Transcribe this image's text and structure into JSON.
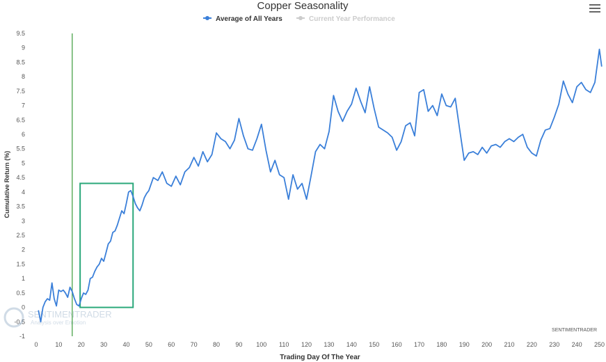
{
  "chart_data": {
    "type": "line",
    "title": "Copper Seasonality",
    "xlabel": "Trading Day Of The Year",
    "ylabel": "Cumulative Return (%)",
    "xlim": [
      0,
      252
    ],
    "ylim": [
      -1,
      9.5
    ],
    "xticks": [
      0,
      10,
      20,
      30,
      40,
      50,
      60,
      70,
      80,
      90,
      100,
      110,
      120,
      130,
      140,
      150,
      160,
      170,
      180,
      190,
      200,
      210,
      220,
      230,
      240,
      250
    ],
    "yticks": [
      -1,
      -0.5,
      0,
      0.5,
      1,
      1.5,
      2,
      2.5,
      3,
      3.5,
      4,
      4.5,
      5,
      5.5,
      6,
      6.5,
      7,
      7.5,
      8,
      8.5,
      9,
      9.5
    ],
    "legend_position": "top-center",
    "series": [
      {
        "name": "Average of All Years",
        "color": "#3a7fd9",
        "visible": true,
        "x": [
          1,
          2,
          3,
          4,
          5,
          6,
          7,
          8,
          9,
          10,
          11,
          12,
          13,
          14,
          15,
          16,
          17,
          18,
          19,
          20,
          21,
          22,
          23,
          24,
          25,
          26,
          27,
          28,
          29,
          30,
          31,
          32,
          33,
          34,
          35,
          36,
          37,
          38,
          39,
          40,
          41,
          42,
          43,
          44,
          45,
          46,
          47,
          48,
          49,
          50,
          52,
          54,
          56,
          58,
          60,
          62,
          64,
          66,
          68,
          70,
          72,
          74,
          76,
          78,
          80,
          82,
          84,
          86,
          88,
          90,
          92,
          94,
          96,
          98,
          100,
          102,
          104,
          106,
          108,
          110,
          112,
          114,
          116,
          118,
          120,
          122,
          124,
          126,
          128,
          130,
          132,
          134,
          136,
          138,
          140,
          142,
          144,
          146,
          148,
          150,
          152,
          154,
          156,
          158,
          160,
          162,
          164,
          166,
          168,
          170,
          172,
          174,
          176,
          178,
          180,
          182,
          184,
          186,
          188,
          190,
          192,
          194,
          196,
          198,
          200,
          202,
          204,
          206,
          208,
          210,
          212,
          214,
          216,
          218,
          220,
          222,
          224,
          226,
          228,
          230,
          232,
          234,
          236,
          238,
          240,
          242,
          244,
          246,
          248,
          250,
          251
        ],
        "values": [
          -0.1,
          -0.5,
          0.0,
          0.2,
          0.3,
          0.25,
          0.85,
          0.3,
          0.05,
          0.6,
          0.55,
          0.6,
          0.5,
          0.35,
          0.7,
          0.55,
          0.3,
          0.1,
          0.05,
          0.3,
          0.5,
          0.45,
          0.6,
          1.0,
          1.05,
          1.25,
          1.4,
          1.5,
          1.7,
          1.6,
          1.9,
          2.2,
          2.3,
          2.6,
          2.65,
          2.85,
          3.1,
          3.35,
          3.25,
          3.6,
          4.0,
          4.05,
          3.85,
          3.6,
          3.45,
          3.35,
          3.55,
          3.8,
          3.95,
          4.05,
          4.5,
          4.4,
          4.7,
          4.3,
          4.2,
          4.55,
          4.25,
          4.7,
          4.85,
          5.2,
          4.9,
          5.4,
          5.05,
          5.3,
          6.05,
          5.85,
          5.75,
          5.5,
          5.8,
          6.55,
          5.95,
          5.5,
          5.45,
          5.85,
          6.35,
          5.45,
          4.7,
          5.1,
          4.6,
          4.5,
          3.75,
          4.6,
          4.1,
          4.3,
          3.75,
          4.55,
          5.4,
          5.65,
          5.5,
          6.1,
          7.35,
          6.8,
          6.45,
          6.8,
          7.05,
          7.6,
          7.15,
          6.75,
          7.65,
          6.9,
          6.25,
          6.15,
          6.05,
          5.9,
          5.45,
          5.75,
          6.3,
          6.4,
          5.95,
          7.45,
          7.55,
          6.8,
          7.0,
          6.65,
          7.4,
          7.0,
          6.95,
          7.25,
          6.15,
          5.1,
          5.35,
          5.4,
          5.3,
          5.55,
          5.35,
          5.6,
          5.65,
          5.55,
          5.75,
          5.85,
          5.75,
          5.9,
          6.0,
          5.55,
          5.35,
          5.25,
          5.8,
          6.15,
          6.2,
          6.6,
          7.05,
          7.85,
          7.4,
          7.1,
          7.65,
          7.8,
          7.55,
          7.45,
          7.8,
          8.95,
          8.35
        ]
      },
      {
        "name": "Current Year Performance",
        "color": "#cccccc",
        "visible": false,
        "x": [],
        "values": []
      }
    ],
    "annotations": {
      "vertical_line": {
        "x": 16,
        "color": "#3a9a3a"
      },
      "rectangle": {
        "x0": 19.5,
        "x1": 43,
        "y0": 0,
        "y1": 4.3,
        "color": "#2aa87a"
      },
      "watermark": {
        "text": "SENTIMENTRADER",
        "subtext": "Analysis over Emotion"
      },
      "credit": "SENTIMENTRADER"
    }
  }
}
